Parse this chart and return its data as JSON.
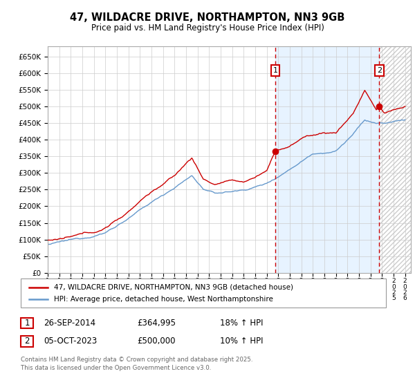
{
  "title": "47, WILDACRE DRIVE, NORTHAMPTON, NN3 9GB",
  "subtitle": "Price paid vs. HM Land Registry's House Price Index (HPI)",
  "ylabel_ticks": [
    "£0",
    "£50K",
    "£100K",
    "£150K",
    "£200K",
    "£250K",
    "£300K",
    "£350K",
    "£400K",
    "£450K",
    "£500K",
    "£550K",
    "£600K",
    "£650K"
  ],
  "ytick_values": [
    0,
    50000,
    100000,
    150000,
    200000,
    250000,
    300000,
    350000,
    400000,
    450000,
    500000,
    550000,
    600000,
    650000
  ],
  "ylim": [
    0,
    680000
  ],
  "xlim_start": 1995.0,
  "xlim_end": 2026.5,
  "sale1_year": 2014.75,
  "sale1_price": 364995,
  "sale2_year": 2023.76,
  "sale2_price": 500000,
  "legend_label_red": "47, WILDACRE DRIVE, NORTHAMPTON, NN3 9GB (detached house)",
  "legend_label_blue": "HPI: Average price, detached house, West Northamptonshire",
  "annotation1": [
    "1",
    "26-SEP-2014",
    "£364,995",
    "18% ↑ HPI"
  ],
  "annotation2": [
    "2",
    "05-OCT-2023",
    "£500,000",
    "10% ↑ HPI"
  ],
  "copyright": "Contains HM Land Registry data © Crown copyright and database right 2025.\nThis data is licensed under the Open Government Licence v3.0.",
  "bg_color": "#ffffff",
  "grid_color": "#cccccc",
  "red_line_color": "#cc0000",
  "blue_line_color": "#6699cc",
  "shade_color": "#ddeeff",
  "dashed_color": "#cc0000",
  "marker_box_color": "#cc0000"
}
